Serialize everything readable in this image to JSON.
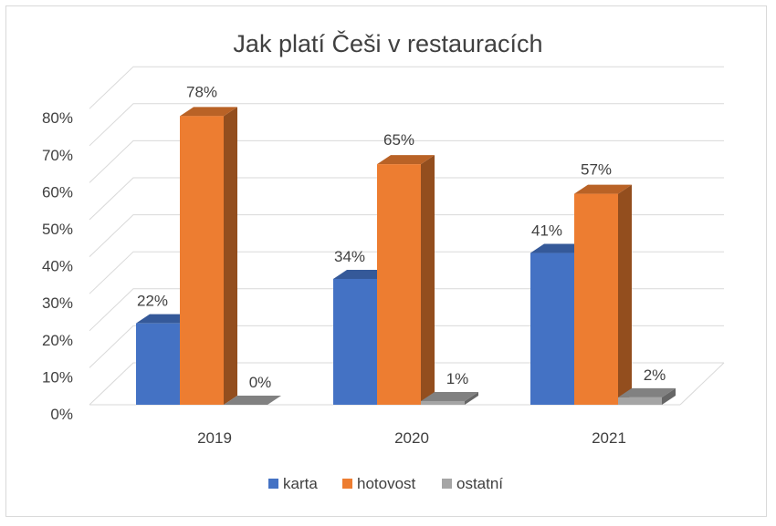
{
  "chart_data": {
    "type": "bar",
    "title": "Jak platí Češi v restauracích",
    "categories": [
      "2019",
      "2020",
      "2021"
    ],
    "series": [
      {
        "name": "karta",
        "values": [
          22,
          34,
          41
        ],
        "labels": [
          "22%",
          "34%",
          "41%"
        ],
        "color": "#4472C4"
      },
      {
        "name": "hotovost",
        "values": [
          78,
          65,
          57
        ],
        "labels": [
          "78%",
          "65%",
          "57%"
        ],
        "color": "#ED7D31"
      },
      {
        "name": "ostatní",
        "values": [
          0,
          1,
          2
        ],
        "labels": [
          "0%",
          "1%",
          "2%"
        ],
        "color": "#A5A5A5"
      }
    ],
    "y_ticks": [
      "0%",
      "10%",
      "20%",
      "30%",
      "40%",
      "50%",
      "60%",
      "70%",
      "80%"
    ],
    "ylim": [
      0,
      80
    ],
    "grid": true,
    "legend_position": "bottom",
    "style": "3d-clustered-column"
  }
}
